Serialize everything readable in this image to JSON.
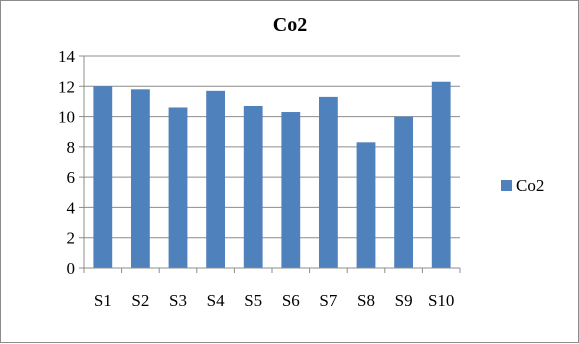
{
  "chart_data": {
    "type": "bar",
    "title": "Co2",
    "categories": [
      "S1",
      "S2",
      "S3",
      "S4",
      "S5",
      "S6",
      "S7",
      "S8",
      "S9",
      "S10"
    ],
    "series": [
      {
        "name": "Co2",
        "values": [
          12.0,
          11.8,
          10.6,
          11.7,
          10.7,
          10.3,
          11.3,
          8.3,
          10.0,
          12.3
        ],
        "color": "#4f81bd"
      }
    ],
    "ylim": [
      0,
      14
    ],
    "yticks": [
      "0",
      "2",
      "4",
      "6",
      "8",
      "10",
      "12",
      "14"
    ],
    "grid": true,
    "legend_position": "right"
  }
}
